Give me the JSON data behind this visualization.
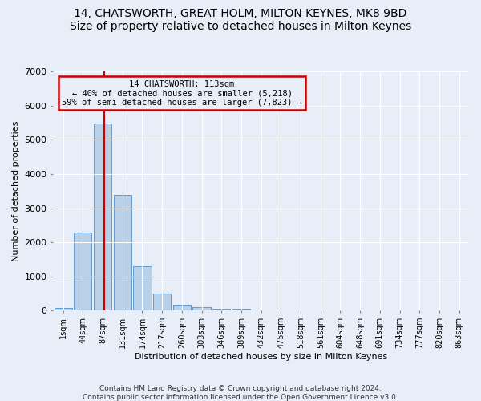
{
  "title1": "14, CHATSWORTH, GREAT HOLM, MILTON KEYNES, MK8 9BD",
  "title2": "Size of property relative to detached houses in Milton Keynes",
  "xlabel": "Distribution of detached houses by size in Milton Keynes",
  "ylabel": "Number of detached properties",
  "footnote1": "Contains HM Land Registry data © Crown copyright and database right 2024.",
  "footnote2": "Contains public sector information licensed under the Open Government Licence v3.0.",
  "annotation_line1": "14 CHATSWORTH: 113sqm",
  "annotation_line2": "← 40% of detached houses are smaller (5,218)",
  "annotation_line3": "59% of semi-detached houses are larger (7,823) →",
  "bar_labels": [
    "1sqm",
    "44sqm",
    "87sqm",
    "131sqm",
    "174sqm",
    "217sqm",
    "260sqm",
    "303sqm",
    "346sqm",
    "389sqm",
    "432sqm",
    "475sqm",
    "518sqm",
    "561sqm",
    "604sqm",
    "648sqm",
    "691sqm",
    "734sqm",
    "777sqm",
    "820sqm",
    "863sqm"
  ],
  "bar_values": [
    80,
    2280,
    5480,
    3380,
    1310,
    510,
    175,
    90,
    65,
    55,
    0,
    0,
    0,
    0,
    0,
    0,
    0,
    0,
    0,
    0,
    0
  ],
  "bar_color": "#b8d0e8",
  "bar_edge_color": "#6699cc",
  "vline_color": "#cc0000",
  "ylim": [
    0,
    7000
  ],
  "yticks": [
    0,
    1000,
    2000,
    3000,
    4000,
    5000,
    6000,
    7000
  ],
  "bg_color": "#e8eef8",
  "grid_color": "#ffffff",
  "annotation_box_edge": "#cc0000",
  "title1_fontsize": 10,
  "title2_fontsize": 9,
  "tick_fontsize": 7,
  "ylabel_fontsize": 8,
  "xlabel_fontsize": 8,
  "footnote_fontsize": 6.5
}
